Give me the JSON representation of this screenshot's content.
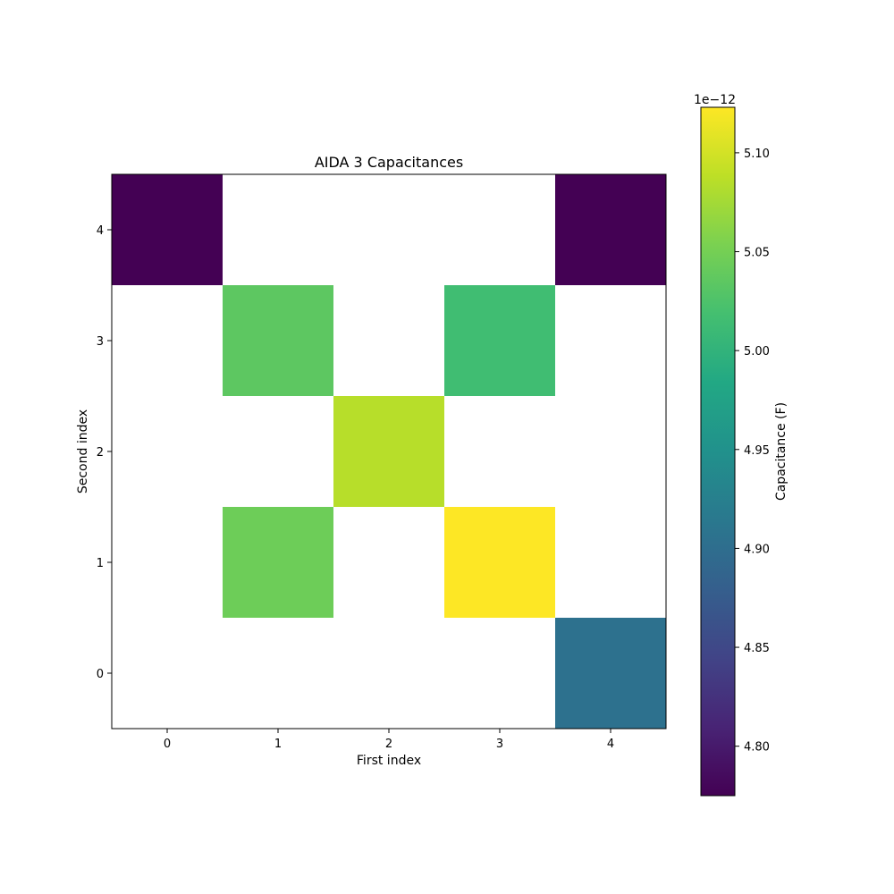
{
  "chart_data": {
    "type": "heatmap",
    "title": "AIDA 3 Capacitances",
    "xlabel": "First index",
    "ylabel": "Second index",
    "x_ticks": [
      "0",
      "1",
      "2",
      "3",
      "4"
    ],
    "y_ticks": [
      "0",
      "1",
      "2",
      "3",
      "4"
    ],
    "cells": [
      {
        "x": 0,
        "y": 4,
        "value": 4.775e-12
      },
      {
        "x": 4,
        "y": 4,
        "value": 4.775e-12
      },
      {
        "x": 1,
        "y": 3,
        "value": 5.035e-12
      },
      {
        "x": 3,
        "y": 3,
        "value": 5.015e-12
      },
      {
        "x": 2,
        "y": 2,
        "value": 5.085e-12
      },
      {
        "x": 1,
        "y": 1,
        "value": 5.045e-12
      },
      {
        "x": 3,
        "y": 1,
        "value": 5.123e-12
      },
      {
        "x": 4,
        "y": 0,
        "value": 4.905e-12
      }
    ],
    "colorbar": {
      "label": "Capacitance (F)",
      "offset_text": "1e−12",
      "range": [
        4.775e-12,
        5.123e-12
      ],
      "ticks": [
        "4.80",
        "4.85",
        "4.90",
        "4.95",
        "5.00",
        "5.05",
        "5.10"
      ],
      "colormap": "viridis"
    },
    "grid": false
  }
}
